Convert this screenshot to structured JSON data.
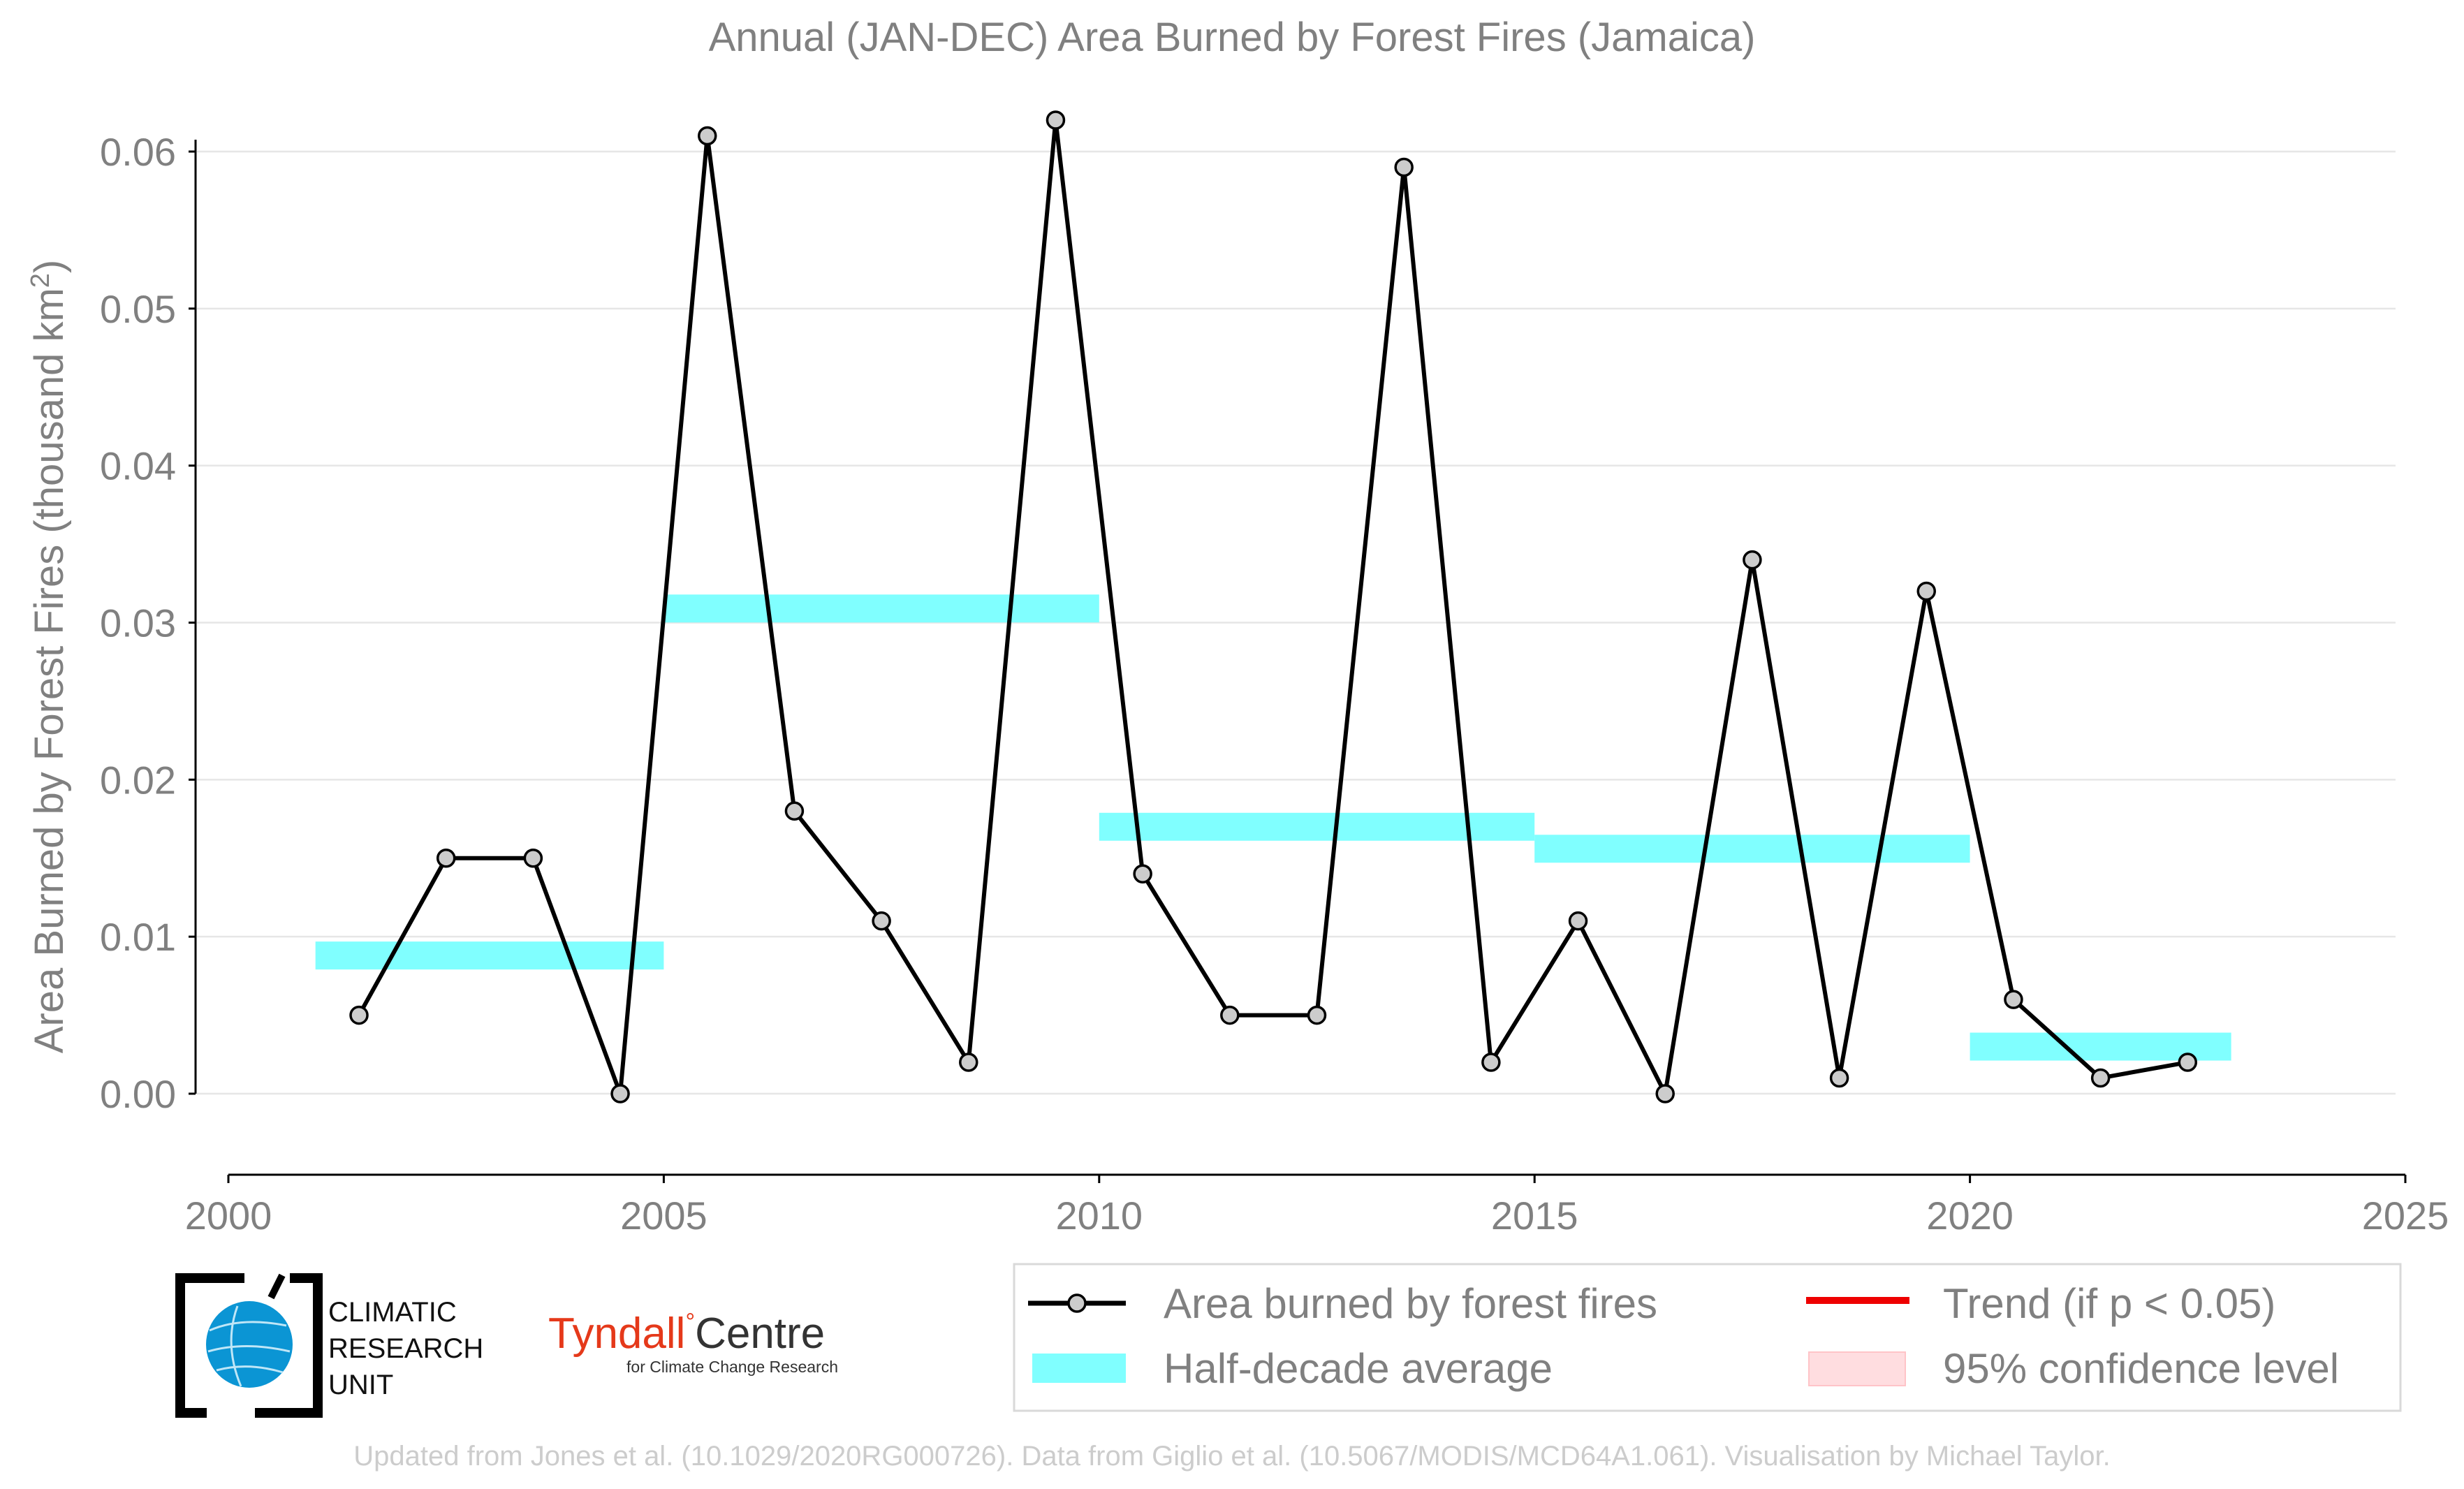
{
  "chart_data": {
    "type": "line",
    "title": "Annual (JAN-DEC) Area Burned by Forest Fires (Jamaica)",
    "ylabel": "Area Burned by Forest Fires (thousand km",
    "ylabel_sup": "2",
    "ylabel_close": ")",
    "xlabel": "",
    "xlim": [
      2000,
      2025
    ],
    "ylim": [
      -0.005,
      0.0642
    ],
    "grid": true,
    "legend_position": "bottom-right",
    "xticks": [
      2000,
      2005,
      2010,
      2015,
      2020,
      2025
    ],
    "xtick_labels": [
      "2000",
      "2005",
      "2010",
      "2015",
      "2020",
      "2025"
    ],
    "yticks": [
      0.0,
      0.01,
      0.02,
      0.03,
      0.04,
      0.05,
      0.06
    ],
    "ytick_labels": [
      "0.00",
      "0.01",
      "0.02",
      "0.03",
      "0.04",
      "0.05",
      "0.06"
    ],
    "series": [
      {
        "name": "Area burned by forest fires",
        "color": "#000000",
        "x": [
          2001.5,
          2002.5,
          2003.5,
          2004.5,
          2005.5,
          2006.5,
          2007.5,
          2008.5,
          2009.5,
          2010.5,
          2011.5,
          2012.5,
          2013.5,
          2014.5,
          2015.5,
          2016.5,
          2017.5,
          2018.5,
          2019.5,
          2020.5,
          2021.5,
          2022.5
        ],
        "values": [
          0.005,
          0.015,
          0.015,
          0.0,
          0.061,
          0.018,
          0.011,
          0.002,
          0.062,
          0.014,
          0.005,
          0.005,
          0.059,
          0.002,
          0.011,
          0.0,
          0.034,
          0.001,
          0.032,
          0.006,
          0.001,
          0.002
        ]
      }
    ],
    "half_decade_averages": {
      "name": "Half-decade average",
      "color": "#80ffff",
      "segments": [
        {
          "x_start": 2001,
          "x_end": 2005,
          "value": 0.0088
        },
        {
          "x_start": 2005,
          "x_end": 2010,
          "value": 0.0309
        },
        {
          "x_start": 2010,
          "x_end": 2015,
          "value": 0.017
        },
        {
          "x_start": 2015,
          "x_end": 2020,
          "value": 0.0156
        },
        {
          "x_start": 2020,
          "x_end": 2023,
          "value": 0.003
        }
      ]
    },
    "legend": [
      {
        "key": "line",
        "label": "Area burned by forest fires"
      },
      {
        "key": "band",
        "label": "Half-decade average"
      },
      {
        "key": "trend",
        "label": "Trend (if p < 0.05)"
      },
      {
        "key": "ci",
        "label": "95% confidence level"
      }
    ],
    "colors": {
      "text": "#808080",
      "grid": "#e6e6e6",
      "axis": "#000000",
      "point_fill": "#cccccc",
      "trend": "#ee0000",
      "ci": "#ffdde0",
      "footer": "#cccccc"
    }
  },
  "logos": {
    "cru": {
      "lines": [
        "CLIMATIC",
        "RESEARCH",
        "UNIT"
      ],
      "globe_color": "#0b95d4"
    },
    "tyndall": {
      "main": "Tyndall",
      "degree": "°",
      "centre": "Centre",
      "sub": "for Climate Change Research",
      "color": "#e5391a"
    }
  },
  "footer": "Updated from Jones et al. (10.1029/2020RG000726). Data from Giglio et al. (10.5067/MODIS/MCD64A1.061). Visualisation by Michael Taylor."
}
